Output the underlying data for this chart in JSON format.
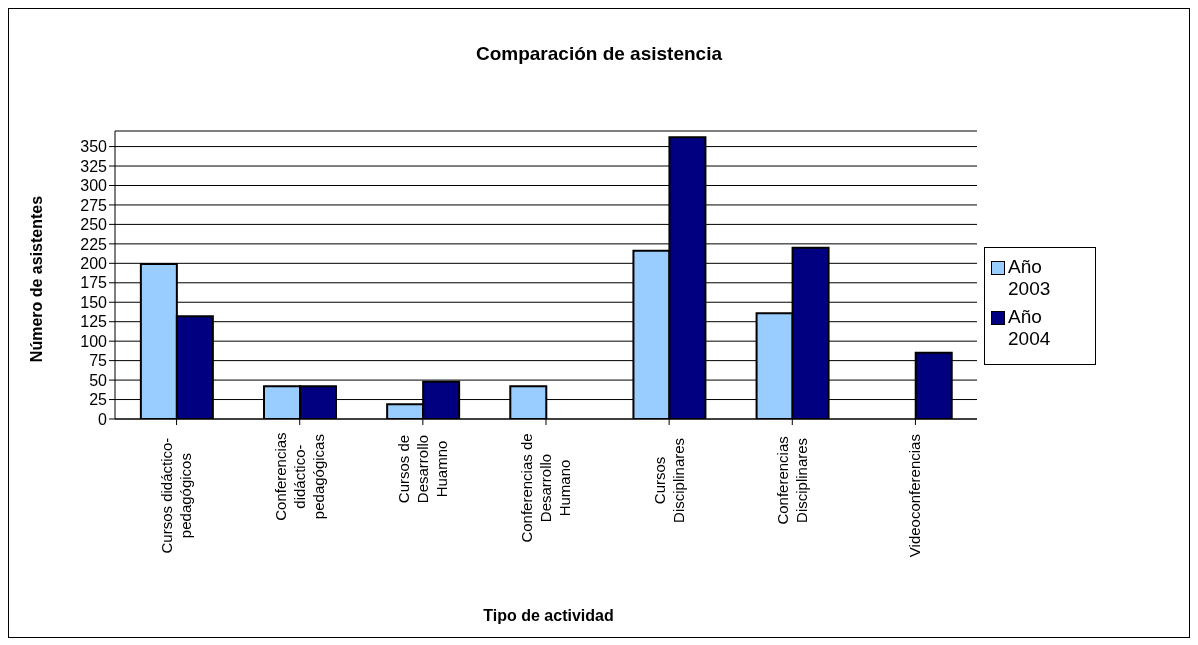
{
  "chart_data": {
    "type": "bar",
    "title": "Comparación de asistencia",
    "xlabel": "Tipo de actividad",
    "ylabel": "Número de asistentes",
    "categories": [
      "Cursos didáctico-\npedagógicos",
      "Conferencias\ndidáctico-\npedagógicas",
      "Cursos de\nDesarrollo\nHuamno",
      "Conferencias de\nDesarrollo\nHumano",
      "Cursos\nDisciplinares",
      "Conferencias\nDisciplinares",
      "Videoconferencias"
    ],
    "series": [
      {
        "name": "Año 2003",
        "color": "#99ccff",
        "values": [
          199,
          42,
          19,
          42,
          216,
          136,
          null
        ]
      },
      {
        "name": "Año 2004",
        "color": "#000080",
        "values": [
          132,
          42,
          48,
          null,
          362,
          220,
          85
        ]
      }
    ],
    "ylim": [
      0,
      370
    ],
    "yticks": [
      0,
      25,
      50,
      75,
      100,
      125,
      150,
      175,
      200,
      225,
      250,
      275,
      300,
      325,
      350
    ],
    "grid": "y",
    "legend": "right"
  }
}
